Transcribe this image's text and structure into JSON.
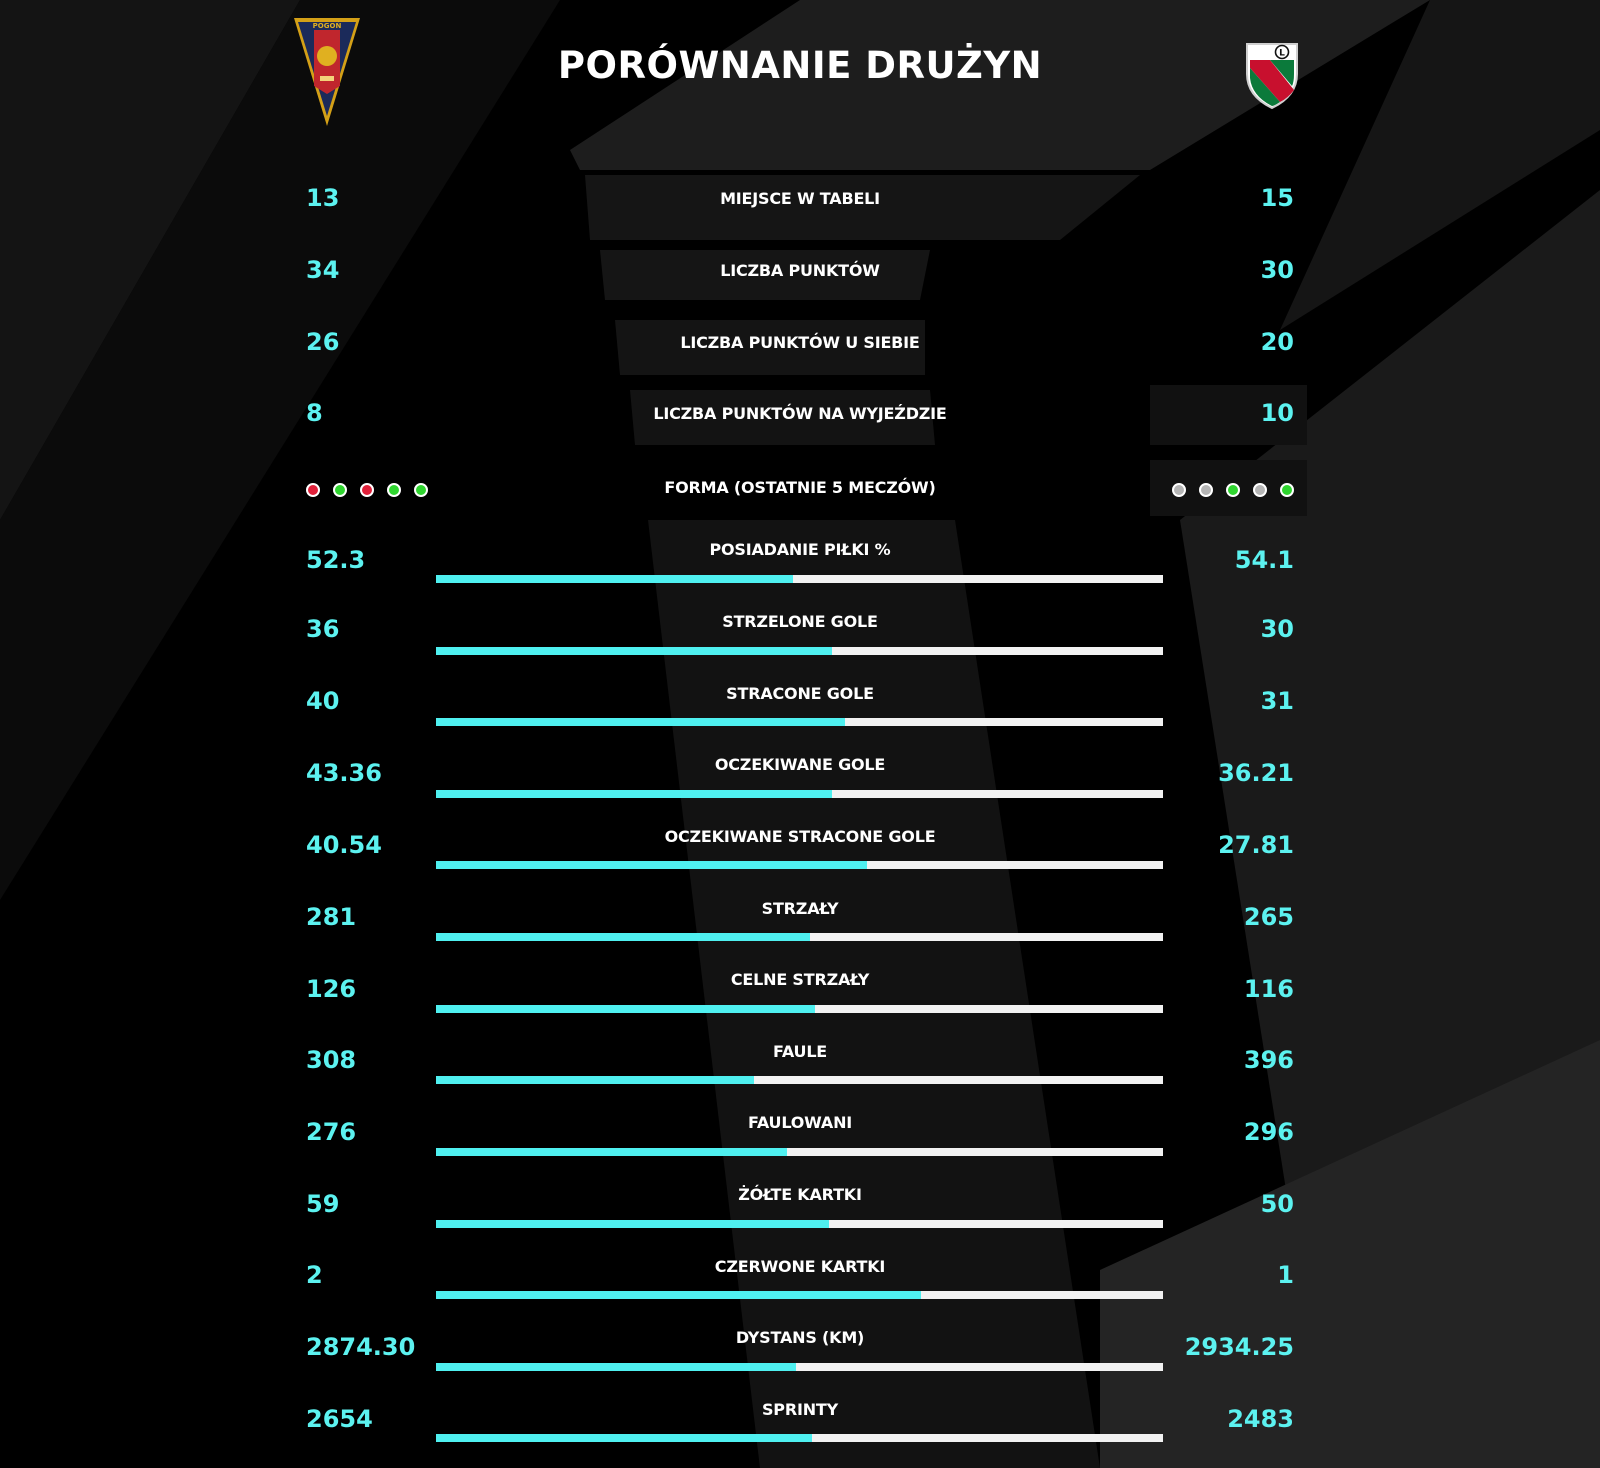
{
  "title": "PORÓWNANIE DRUŻYN",
  "colors": {
    "accent": "#5cf2f0",
    "bar_fill": "#4ff0f0",
    "bar_track": "#f2f2f2",
    "win": "#2fd52f",
    "loss": "#e0203a",
    "draw": "#b5b5b5"
  },
  "teams": {
    "home": {
      "crest_icon": "pogon-crest-icon",
      "crest_text": "POGOŃ"
    },
    "away": {
      "crest_icon": "legia-crest-icon",
      "crest_text": "L"
    }
  },
  "stats": [
    {
      "label": "MIEJSCE W TABELI",
      "home": "13",
      "away": "15"
    },
    {
      "label": "LICZBA PUNKTÓW",
      "home": "34",
      "away": "30"
    },
    {
      "label": "LICZBA PUNKTÓW U SIEBIE",
      "home": "26",
      "away": "20"
    },
    {
      "label": "LICZBA PUNKTÓW NA WYJEŹDZIE",
      "home": "8",
      "away": "10"
    }
  ],
  "form": {
    "label": "FORMA (OSTATNIE 5 MECZÓW)",
    "home": [
      "loss",
      "win",
      "loss",
      "win",
      "win"
    ],
    "away": [
      "draw",
      "draw",
      "win",
      "draw",
      "win"
    ]
  },
  "bars": [
    {
      "label": "POSIADANIE PIŁKI %",
      "home": "52.3",
      "away": "54.1",
      "home_share": 0.491
    },
    {
      "label": "STRZELONE GOLE",
      "home": "36",
      "away": "30",
      "home_share": 0.545
    },
    {
      "label": "STRACONE GOLE",
      "home": "40",
      "away": "31",
      "home_share": 0.563
    },
    {
      "label": "OCZEKIWANE GOLE",
      "home": "43.36",
      "away": "36.21",
      "home_share": 0.545
    },
    {
      "label": "OCZEKIWANE STRACONE GOLE",
      "home": "40.54",
      "away": "27.81",
      "home_share": 0.593
    },
    {
      "label": "STRZAŁY",
      "home": "281",
      "away": "265",
      "home_share": 0.515
    },
    {
      "label": "CELNE STRZAŁY",
      "home": "126",
      "away": "116",
      "home_share": 0.521
    },
    {
      "label": "FAULE",
      "home": "308",
      "away": "396",
      "home_share": 0.438
    },
    {
      "label": "FAULOWANI",
      "home": "276",
      "away": "296",
      "home_share": 0.483
    },
    {
      "label": "ŻÓŁTE KARTKI",
      "home": "59",
      "away": "50",
      "home_share": 0.541
    },
    {
      "label": "CZERWONE KARTKI",
      "home": "2",
      "away": "1",
      "home_share": 0.667
    },
    {
      "label": "DYSTANS (KM)",
      "home": "2874.30",
      "away": "2934.25",
      "home_share": 0.495
    },
    {
      "label": "SPRINTY",
      "home": "2654",
      "away": "2483",
      "home_share": 0.517
    }
  ]
}
